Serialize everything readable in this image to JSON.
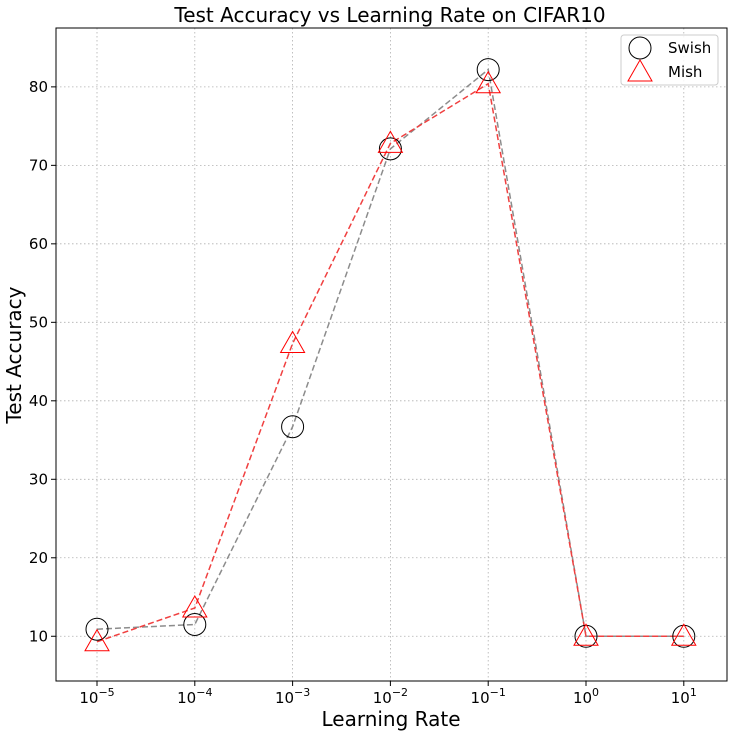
{
  "chart_data": {
    "type": "line",
    "title": "Test Accuracy vs Learning Rate on CIFAR10",
    "xlabel": "Learning Rate",
    "ylabel": "Test Accuracy",
    "x_scale": "log",
    "x": [
      1e-05,
      0.0001,
      0.001,
      0.01,
      0.1,
      1,
      10
    ],
    "x_tick_labels": [
      {
        "base": "10",
        "exp": "−5"
      },
      {
        "base": "10",
        "exp": "−4"
      },
      {
        "base": "10",
        "exp": "−3"
      },
      {
        "base": "10",
        "exp": "−2"
      },
      {
        "base": "10",
        "exp": "−1"
      },
      {
        "base": "10",
        "exp": "0"
      },
      {
        "base": "10",
        "exp": "1"
      }
    ],
    "y_ticks": [
      10,
      20,
      30,
      40,
      50,
      60,
      70,
      80
    ],
    "ylim": [
      4.3,
      87.5
    ],
    "grid": true,
    "legend_position": "top-right",
    "series": [
      {
        "name": "Swish",
        "marker": "circle",
        "marker_color": "#000000",
        "line_color": "#8c8c8c",
        "values": [
          10.9,
          11.5,
          36.7,
          72.1,
          82.2,
          10.0,
          10.0
        ]
      },
      {
        "name": "Mish",
        "marker": "triangle",
        "marker_color": "#ff0000",
        "line_color": "#f04040",
        "values": [
          9.3,
          13.6,
          47.3,
          72.8,
          80.4,
          10.0,
          10.0
        ]
      }
    ]
  }
}
